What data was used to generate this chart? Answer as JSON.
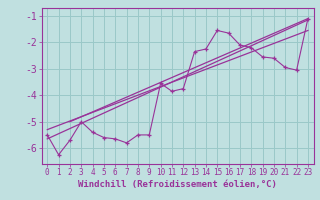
{
  "title": "",
  "xlabel": "Windchill (Refroidissement éolien,°C)",
  "ylabel": "",
  "background_color": "#c0e0e0",
  "grid_color": "#9ac8c8",
  "line_color": "#993399",
  "xlim": [
    -0.5,
    23.5
  ],
  "ylim": [
    -6.6,
    -0.7
  ],
  "yticks": [
    -6,
    -5,
    -4,
    -3,
    -2,
    -1
  ],
  "xticks": [
    0,
    1,
    2,
    3,
    4,
    5,
    6,
    7,
    8,
    9,
    10,
    11,
    12,
    13,
    14,
    15,
    16,
    17,
    18,
    19,
    20,
    21,
    22,
    23
  ],
  "data_x": [
    0,
    1,
    2,
    3,
    4,
    5,
    6,
    7,
    8,
    9,
    10,
    11,
    12,
    13,
    14,
    15,
    16,
    17,
    18,
    19,
    20,
    21,
    22,
    23
  ],
  "data_y": [
    -5.5,
    -6.25,
    -5.7,
    -5.0,
    -5.4,
    -5.6,
    -5.65,
    -5.8,
    -5.5,
    -5.5,
    -3.55,
    -3.85,
    -3.75,
    -2.35,
    -2.25,
    -1.55,
    -1.65,
    -2.1,
    -2.2,
    -2.55,
    -2.6,
    -2.95,
    -3.05,
    -1.1
  ],
  "reg_line1": {
    "x": [
      0,
      23
    ],
    "y": [
      -5.65,
      -1.15
    ]
  },
  "reg_line2": {
    "x": [
      0,
      23
    ],
    "y": [
      -5.3,
      -1.55
    ]
  },
  "reg_line3": {
    "x": [
      2,
      23
    ],
    "y": [
      -5.0,
      -1.1
    ]
  },
  "fontsize_xlabel": 6.5,
  "fontsize_yticks": 7,
  "fontsize_xticks": 5.5
}
